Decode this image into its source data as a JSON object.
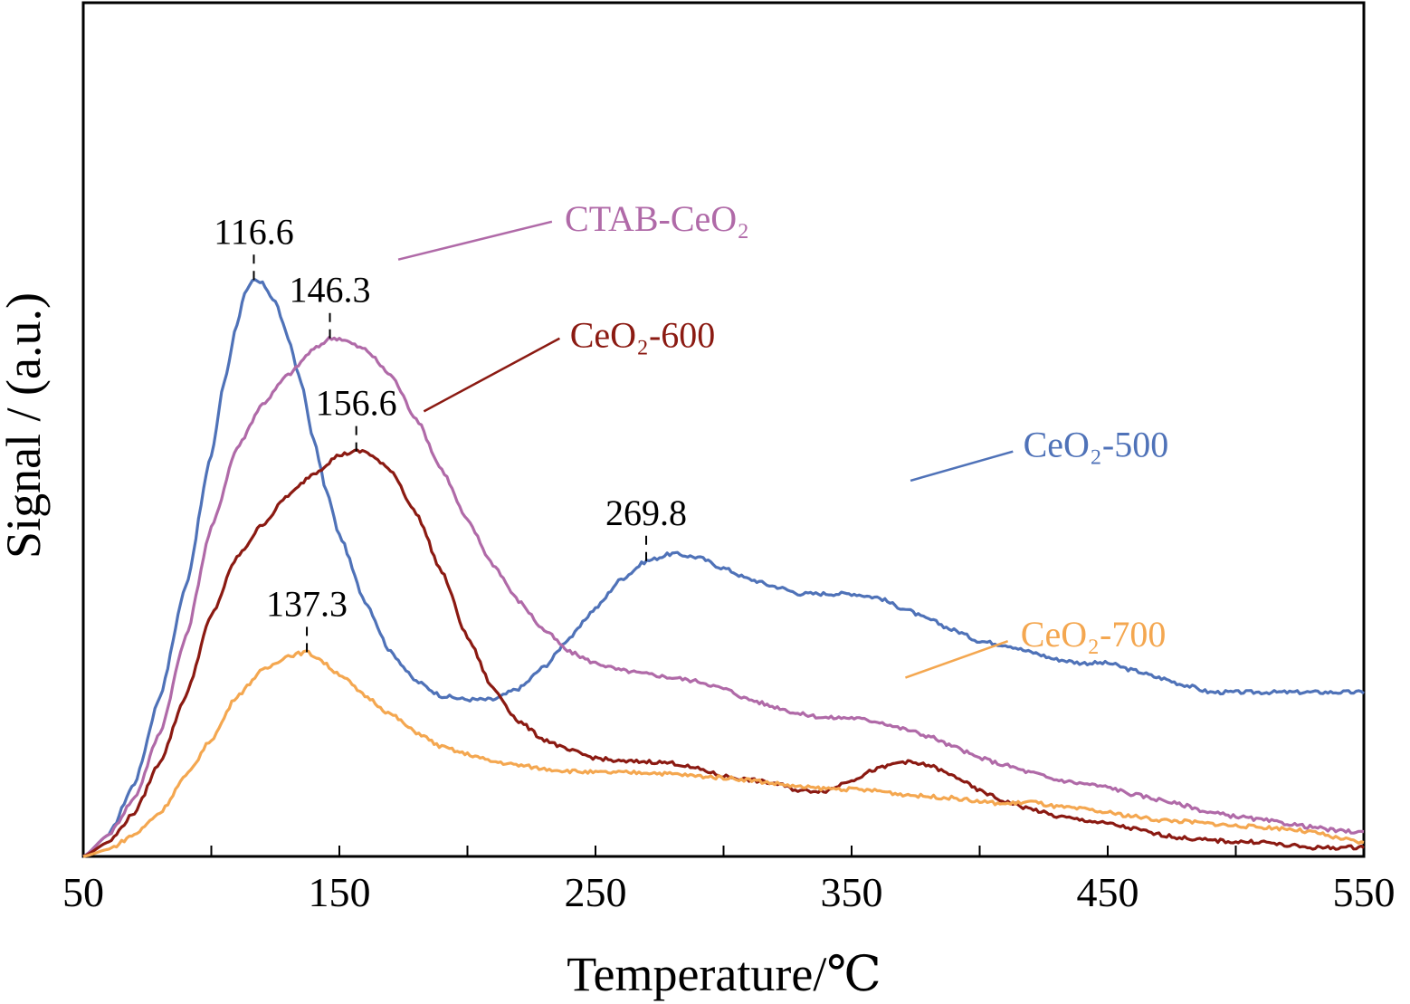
{
  "chart_data": {
    "type": "line",
    "title": "",
    "xlabel": "Temperature/℃",
    "ylabel": "Signal / (a.u.)",
    "xlim": [
      50,
      550
    ],
    "ylim": [
      0,
      100
    ],
    "yticks_labeled": false,
    "xticks": [
      50,
      150,
      250,
      350,
      450,
      550
    ],
    "xminor": [
      100,
      200,
      300,
      400,
      500
    ],
    "grid": false,
    "legend": "inline-labels",
    "series": [
      {
        "name": "CeO₂-500",
        "color": "#4f72b8",
        "label": {
          "text": "CeO₂-500",
          "at": [
            417,
            56.5
          ]
        },
        "leader": [
          [
            373,
            51.5
          ],
          [
            413,
            55.5
          ]
        ],
        "points": [
          [
            50,
            0
          ],
          [
            60,
            3
          ],
          [
            70,
            10
          ],
          [
            80,
            22
          ],
          [
            90,
            37
          ],
          [
            100,
            55
          ],
          [
            105,
            65
          ],
          [
            110,
            73
          ],
          [
            113,
            77
          ],
          [
            116.6,
            79
          ],
          [
            120,
            78.5
          ],
          [
            125,
            76
          ],
          [
            130,
            71
          ],
          [
            135,
            65
          ],
          [
            140,
            57
          ],
          [
            145,
            50
          ],
          [
            150,
            44
          ],
          [
            160,
            35
          ],
          [
            170,
            28
          ],
          [
            180,
            24
          ],
          [
            190,
            22
          ],
          [
            200,
            21.5
          ],
          [
            210,
            21.5
          ],
          [
            220,
            23
          ],
          [
            230,
            26
          ],
          [
            240,
            30
          ],
          [
            250,
            34
          ],
          [
            260,
            38
          ],
          [
            270,
            40.5
          ],
          [
            280,
            41.5
          ],
          [
            290,
            41
          ],
          [
            300,
            39.5
          ],
          [
            310,
            38
          ],
          [
            320,
            37
          ],
          [
            330,
            36
          ],
          [
            340,
            36
          ],
          [
            350,
            36
          ],
          [
            360,
            35.5
          ],
          [
            370,
            34
          ],
          [
            380,
            32.5
          ],
          [
            390,
            31
          ],
          [
            400,
            29.5
          ],
          [
            410,
            29
          ],
          [
            420,
            28
          ],
          [
            430,
            27
          ],
          [
            440,
            26.5
          ],
          [
            450,
            26.5
          ],
          [
            460,
            25.5
          ],
          [
            470,
            24.5
          ],
          [
            480,
            23.5
          ],
          [
            490,
            22.5
          ],
          [
            500,
            22.5
          ],
          [
            510,
            22.5
          ],
          [
            520,
            22.5
          ],
          [
            530,
            22.5
          ],
          [
            540,
            22.5
          ],
          [
            550,
            22.5
          ]
        ],
        "peaks": [
          {
            "x": 116.6,
            "label": "116.6"
          },
          {
            "x": 269.8,
            "label": "269.8"
          }
        ]
      },
      {
        "name": "CTAB-CeO₂",
        "color": "#b06aa8",
        "label": {
          "text": "CTAB-CeO₂",
          "at": [
            238,
            87.5
          ]
        },
        "leader": [
          [
            173,
            81.8
          ],
          [
            233,
            87
          ]
        ],
        "points": [
          [
            50,
            0
          ],
          [
            60,
            3
          ],
          [
            70,
            8
          ],
          [
            80,
            17
          ],
          [
            90,
            30
          ],
          [
            100,
            45
          ],
          [
            110,
            56
          ],
          [
            120,
            62
          ],
          [
            130,
            66
          ],
          [
            140,
            69.5
          ],
          [
            146.3,
            71
          ],
          [
            150,
            71
          ],
          [
            160,
            69.5
          ],
          [
            170,
            66
          ],
          [
            180,
            60
          ],
          [
            190,
            53
          ],
          [
            200,
            46
          ],
          [
            210,
            40
          ],
          [
            220,
            35
          ],
          [
            230,
            31
          ],
          [
            240,
            28
          ],
          [
            250,
            26.5
          ],
          [
            260,
            25.5
          ],
          [
            270,
            25
          ],
          [
            280,
            24.5
          ],
          [
            290,
            24
          ],
          [
            300,
            23
          ],
          [
            310,
            21.5
          ],
          [
            320,
            20.5
          ],
          [
            330,
            19.5
          ],
          [
            340,
            19
          ],
          [
            350,
            19
          ],
          [
            360,
            18.5
          ],
          [
            370,
            17.5
          ],
          [
            380,
            16.5
          ],
          [
            390,
            15
          ],
          [
            400,
            13.5
          ],
          [
            410,
            12.5
          ],
          [
            420,
            11.5
          ],
          [
            430,
            10.5
          ],
          [
            440,
            10
          ],
          [
            450,
            9.5
          ],
          [
            460,
            8.5
          ],
          [
            470,
            7.8
          ],
          [
            480,
            7
          ],
          [
            490,
            6
          ],
          [
            500,
            5.5
          ],
          [
            510,
            5
          ],
          [
            520,
            4.5
          ],
          [
            530,
            4
          ],
          [
            540,
            3.5
          ],
          [
            550,
            3.3
          ]
        ],
        "peaks": [
          {
            "x": 146.3,
            "label": "146.3"
          }
        ]
      },
      {
        "name": "CeO₂-600",
        "color": "#8b1a12",
        "label": {
          "text": "CeO₂-600",
          "at": [
            240,
            71.5
          ]
        },
        "leader": [
          [
            183,
            61
          ],
          [
            236,
            71
          ]
        ],
        "points": [
          [
            50,
            0
          ],
          [
            60,
            2
          ],
          [
            70,
            6
          ],
          [
            80,
            13
          ],
          [
            90,
            22
          ],
          [
            100,
            33
          ],
          [
            110,
            41
          ],
          [
            120,
            45.5
          ],
          [
            130,
            49.5
          ],
          [
            140,
            52.5
          ],
          [
            150,
            55
          ],
          [
            156.6,
            55.5
          ],
          [
            160,
            55.5
          ],
          [
            170,
            53
          ],
          [
            180,
            47
          ],
          [
            190,
            39
          ],
          [
            200,
            30
          ],
          [
            210,
            23
          ],
          [
            220,
            18.5
          ],
          [
            230,
            16
          ],
          [
            240,
            14.5
          ],
          [
            250,
            13.5
          ],
          [
            260,
            13
          ],
          [
            270,
            13
          ],
          [
            280,
            12.8
          ],
          [
            290,
            12
          ],
          [
            300,
            11
          ],
          [
            310,
            10.5
          ],
          [
            320,
            10
          ],
          [
            330,
            9
          ],
          [
            340,
            9
          ],
          [
            350,
            10.5
          ],
          [
            360,
            12
          ],
          [
            370,
            13
          ],
          [
            380,
            12.5
          ],
          [
            390,
            11
          ],
          [
            400,
            9
          ],
          [
            410,
            7.5
          ],
          [
            420,
            6.5
          ],
          [
            430,
            5.5
          ],
          [
            440,
            5
          ],
          [
            450,
            4.5
          ],
          [
            460,
            3.8
          ],
          [
            470,
            3
          ],
          [
            480,
            2.5
          ],
          [
            490,
            2.2
          ],
          [
            500,
            2
          ],
          [
            510,
            2
          ],
          [
            520,
            1.5
          ],
          [
            530,
            1.2
          ],
          [
            540,
            1.2
          ],
          [
            550,
            1.3
          ]
        ],
        "peaks": [
          {
            "x": 156.6,
            "label": "156.6"
          }
        ]
      },
      {
        "name": "CeO₂-700",
        "color": "#f4a750",
        "label": {
          "text": "CeO₂-700",
          "at": [
            416,
            30.5
          ]
        },
        "leader": [
          [
            371,
            24.5
          ],
          [
            411,
            29.5
          ]
        ],
        "points": [
          [
            50,
            0
          ],
          [
            60,
            1
          ],
          [
            70,
            3
          ],
          [
            80,
            6
          ],
          [
            90,
            11
          ],
          [
            100,
            16
          ],
          [
            110,
            22
          ],
          [
            120,
            25.5
          ],
          [
            130,
            27.5
          ],
          [
            137.3,
            28
          ],
          [
            140,
            27.5
          ],
          [
            150,
            25
          ],
          [
            160,
            22
          ],
          [
            170,
            19.5
          ],
          [
            180,
            17
          ],
          [
            190,
            15
          ],
          [
            200,
            14
          ],
          [
            210,
            13
          ],
          [
            220,
            12.5
          ],
          [
            230,
            12
          ],
          [
            240,
            11.7
          ],
          [
            250,
            11.5
          ],
          [
            260,
            11.5
          ],
          [
            270,
            11.5
          ],
          [
            280,
            11.3
          ],
          [
            290,
            11
          ],
          [
            300,
            10.8
          ],
          [
            310,
            10.5
          ],
          [
            320,
            10
          ],
          [
            330,
            9.5
          ],
          [
            340,
            9.3
          ],
          [
            350,
            9.2
          ],
          [
            360,
            9
          ],
          [
            370,
            8.5
          ],
          [
            380,
            8.2
          ],
          [
            390,
            8
          ],
          [
            400,
            7.5
          ],
          [
            410,
            7.2
          ],
          [
            420,
            7.5
          ],
          [
            430,
            6.8
          ],
          [
            440,
            6.5
          ],
          [
            450,
            6
          ],
          [
            460,
            5.5
          ],
          [
            470,
            5
          ],
          [
            480,
            4.8
          ],
          [
            490,
            4.5
          ],
          [
            500,
            4.2
          ],
          [
            510,
            4
          ],
          [
            520,
            3.8
          ],
          [
            530,
            3.3
          ],
          [
            540,
            2.5
          ],
          [
            550,
            1.8
          ]
        ],
        "peaks": [
          {
            "x": 137.3,
            "label": "137.3"
          }
        ]
      }
    ]
  }
}
